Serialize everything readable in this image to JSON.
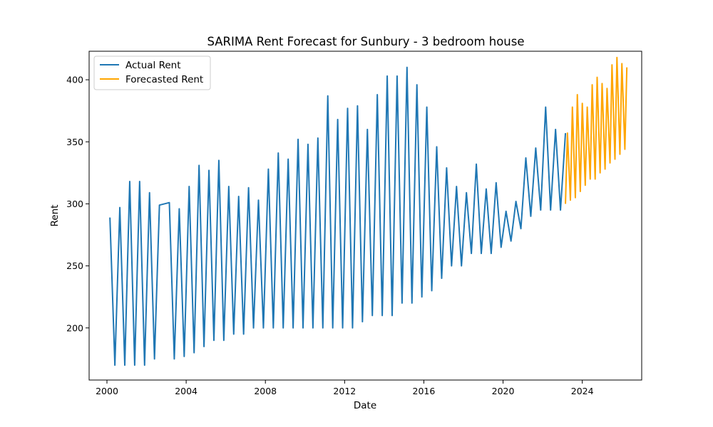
{
  "chart_data": {
    "type": "line",
    "title": "SARIMA Rent Forecast for Sunbury - 3 bedroom house",
    "xlabel": "Date",
    "ylabel": "Rent",
    "xlim": [
      1999.1,
      2027.0
    ],
    "ylim": [
      158,
      423
    ],
    "x_ticks": [
      2000,
      2004,
      2008,
      2012,
      2016,
      2020,
      2024
    ],
    "y_ticks": [
      200,
      250,
      300,
      350,
      400
    ],
    "grid": false,
    "legend": "upper left",
    "series": [
      {
        "name": "Actual Rent",
        "color": "#1f77b4",
        "x": [
          2000.15,
          2000.4,
          2000.65,
          2000.9,
          2001.15,
          2001.4,
          2001.65,
          2001.9,
          2002.15,
          2002.4,
          2002.65,
          2003.15,
          2003.4,
          2003.65,
          2003.9,
          2004.15,
          2004.4,
          2004.65,
          2004.9,
          2005.15,
          2005.4,
          2005.65,
          2005.9,
          2006.15,
          2006.4,
          2006.65,
          2006.9,
          2007.15,
          2007.4,
          2007.65,
          2007.9,
          2008.15,
          2008.4,
          2008.65,
          2008.9,
          2009.15,
          2009.4,
          2009.65,
          2009.9,
          2010.15,
          2010.4,
          2010.65,
          2010.9,
          2011.15,
          2011.4,
          2011.65,
          2011.9,
          2012.15,
          2012.4,
          2012.65,
          2012.9,
          2013.15,
          2013.4,
          2013.65,
          2013.9,
          2014.15,
          2014.4,
          2014.65,
          2014.9,
          2015.15,
          2015.4,
          2015.65,
          2015.9,
          2016.15,
          2016.4,
          2016.65,
          2016.9,
          2017.15,
          2017.4,
          2017.65,
          2017.9,
          2018.15,
          2018.4,
          2018.65,
          2018.9,
          2019.15,
          2019.4,
          2019.65,
          2019.9,
          2020.15,
          2020.4,
          2020.65,
          2020.9,
          2021.15,
          2021.4,
          2021.65,
          2021.9,
          2022.15,
          2022.4,
          2022.65,
          2022.9,
          2023.15
        ],
        "values": [
          289,
          170,
          297,
          170,
          318,
          170,
          318,
          170,
          309,
          175,
          299,
          301,
          175,
          296,
          177,
          314,
          180,
          331,
          185,
          327,
          190,
          335,
          190,
          314,
          195,
          306,
          195,
          313,
          200,
          303,
          200,
          328,
          200,
          341,
          200,
          336,
          200,
          352,
          200,
          348,
          200,
          353,
          200,
          387,
          200,
          368,
          200,
          377,
          200,
          379,
          205,
          360,
          210,
          388,
          210,
          403,
          210,
          403,
          220,
          410,
          220,
          396,
          225,
          378,
          230,
          346,
          240,
          329,
          250,
          314,
          250,
          309,
          260,
          332,
          260,
          312,
          260,
          317,
          265,
          294,
          270,
          302,
          280,
          337,
          290,
          345,
          295,
          378,
          295,
          360,
          295,
          357
        ]
      },
      {
        "name": "Forecasted Rent",
        "color": "#ffa500",
        "x": [
          2023.15,
          2023.25,
          2023.4,
          2023.5,
          2023.65,
          2023.75,
          2023.9,
          2024.0,
          2024.15,
          2024.25,
          2024.4,
          2024.5,
          2024.65,
          2024.75,
          2024.9,
          2025.0,
          2025.15,
          2025.25,
          2025.4,
          2025.5,
          2025.65,
          2025.75,
          2025.9,
          2026.0,
          2026.15,
          2026.25
        ],
        "values": [
          300,
          357,
          303,
          378,
          305,
          388,
          310,
          381,
          315,
          378,
          320,
          396,
          320,
          402,
          325,
          397,
          328,
          393,
          333,
          412,
          336,
          418,
          340,
          413,
          344,
          410
        ]
      }
    ]
  }
}
